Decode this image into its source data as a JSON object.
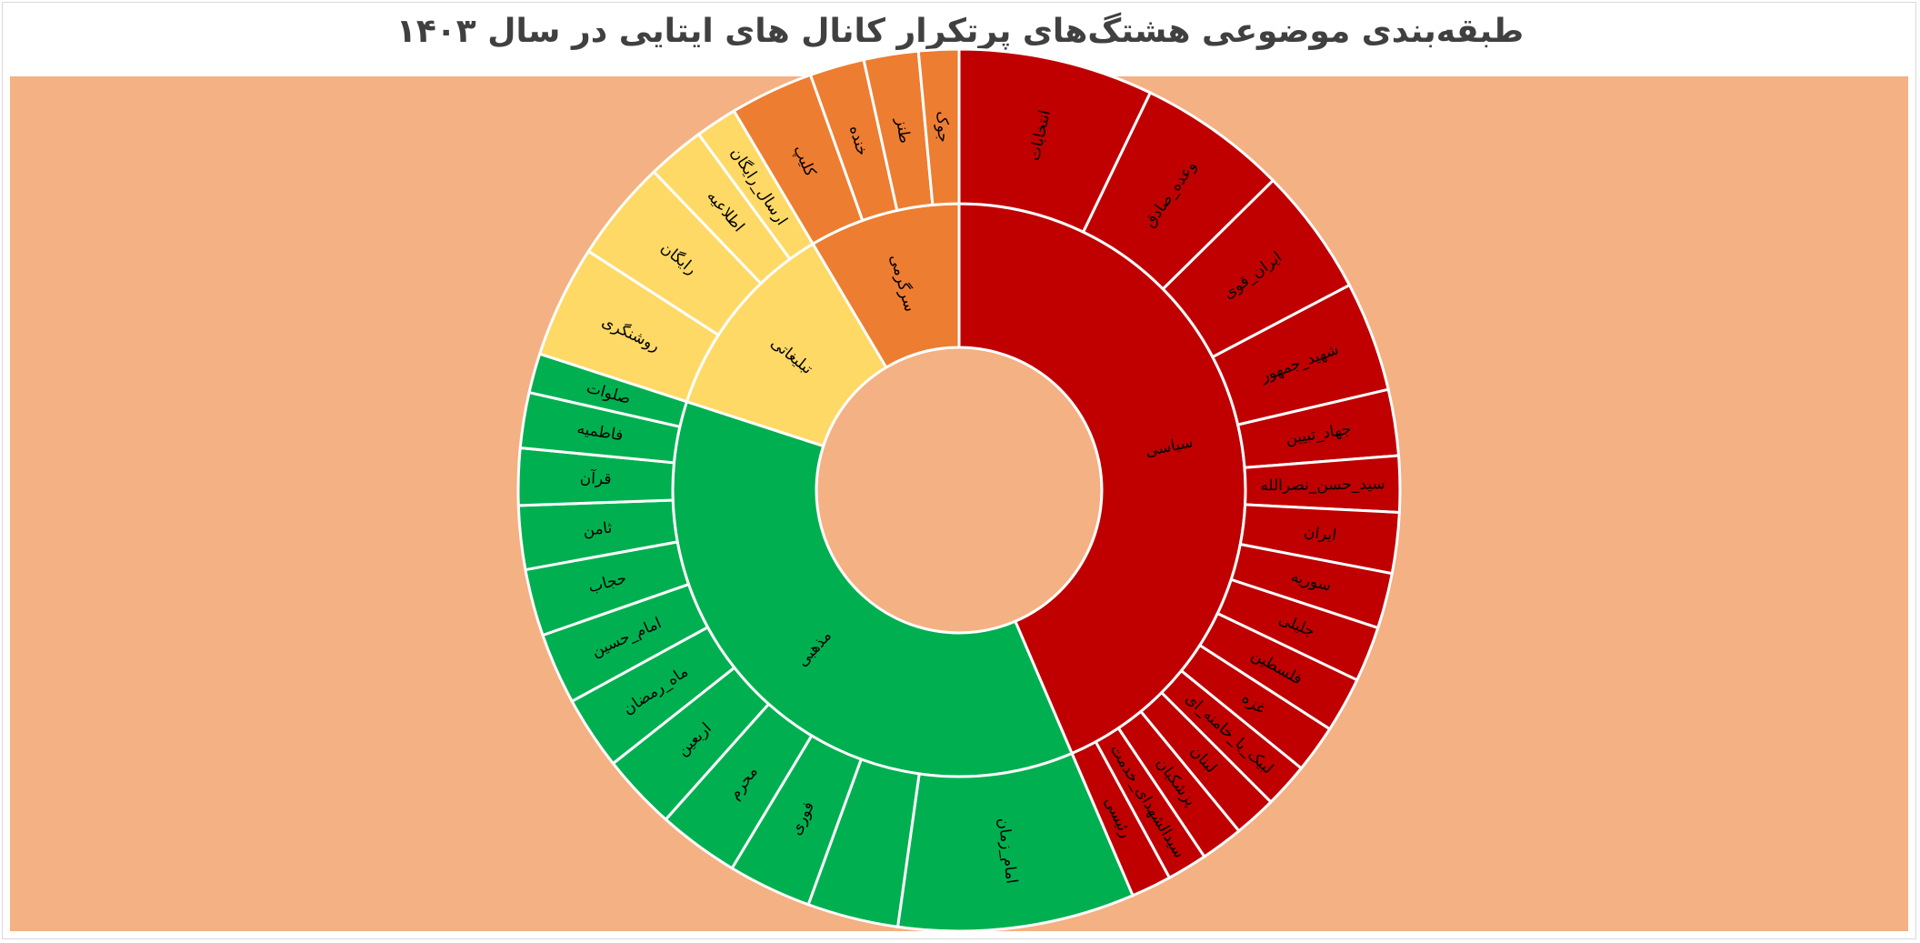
{
  "title": "طبقه‌بندی موضوعی هشتگ‌های پرتکرار کانال های ایتایی در سال ۱۴۰۳",
  "colors": {
    "plot_background": "#f4b183",
    "political": "#c00000",
    "religious": "#00b050",
    "promotional": "#ffd966",
    "entertainment": "#ed7d31",
    "separator": "#ffffff"
  },
  "chart_data": {
    "type": "sunburst",
    "title": "طبقه‌بندی موضوعی هشتگ‌های پرتکرار کانال های ایتایی در سال ۱۴۰۳",
    "center": [
      1055,
      539
    ],
    "radii": {
      "hole": 157,
      "inner": 315,
      "outer": 485
    },
    "units": "degrees clockwise from 12 o'clock (approximate share of total)",
    "categories": [
      {
        "name": "سیاسی",
        "color": "#c00000",
        "start": 0,
        "end": 156.8,
        "children": [
          {
            "name": "انتخابات",
            "start": 0,
            "end": 25.7
          },
          {
            "name": "وعده_صادق",
            "start": 25.7,
            "end": 45.4
          },
          {
            "name": "ایران_قوی",
            "start": 45.4,
            "end": 62.3
          },
          {
            "name": "شهید_جمهور",
            "start": 62.3,
            "end": 76.8
          },
          {
            "name": "جهاد_تبیین",
            "start": 76.8,
            "end": 85.5
          },
          {
            "name": "سید_حسن_نصرالله",
            "start": 85.5,
            "end": 92.9
          },
          {
            "name": "ایران",
            "start": 92.9,
            "end": 100.9
          },
          {
            "name": "سوریه",
            "start": 100.9,
            "end": 108.2
          },
          {
            "name": "جلیلی",
            "start": 108.2,
            "end": 115.5
          },
          {
            "name": "فلسطین",
            "start": 115.5,
            "end": 122.8
          },
          {
            "name": "غزه",
            "start": 122.8,
            "end": 129.1
          },
          {
            "name": "لبیک_یا_خامنه_ای",
            "start": 129.1,
            "end": 135.0
          },
          {
            "name": "لبنان",
            "start": 135.0,
            "end": 140.6
          },
          {
            "name": "پزشکیان",
            "start": 140.6,
            "end": 146.2
          },
          {
            "name": "سیدالشهدای_خدمت",
            "start": 146.2,
            "end": 151.5
          },
          {
            "name": "رئیسی",
            "start": 151.5,
            "end": 156.8
          }
        ]
      },
      {
        "name": "مذهبی",
        "color": "#00b050",
        "start": 156.8,
        "end": 288.0,
        "children": [
          {
            "name": "امام_زمان",
            "start": 156.8,
            "end": 188.0
          },
          {
            "name": "",
            "start": 188.0,
            "end": 200.0
          },
          {
            "name": "فوری",
            "start": 200.0,
            "end": 211.0
          },
          {
            "name": "محرم",
            "start": 211.0,
            "end": 221.7
          },
          {
            "name": "اربعین",
            "start": 221.7,
            "end": 231.7
          },
          {
            "name": "ماه_رمضان",
            "start": 231.7,
            "end": 241.4
          },
          {
            "name": "امام_حسین",
            "start": 241.4,
            "end": 250.8
          },
          {
            "name": "حجاب",
            "start": 250.8,
            "end": 259.6
          },
          {
            "name": "ثامن",
            "start": 259.6,
            "end": 268.0
          },
          {
            "name": "قرآن",
            "start": 268.0,
            "end": 275.5
          },
          {
            "name": "فاطمیه",
            "start": 275.5,
            "end": 282.8
          },
          {
            "name": "صلوات",
            "start": 282.8,
            "end": 288.0
          }
        ]
      },
      {
        "name": "تبلیغاتی",
        "color": "#ffd966",
        "start": 288.0,
        "end": 329.3,
        "children": [
          {
            "name": "روشنگری",
            "start": 288.0,
            "end": 302.8
          },
          {
            "name": "رایگان",
            "start": 302.8,
            "end": 316.2
          },
          {
            "name": "اطلاعیه",
            "start": 316.2,
            "end": 323.8
          },
          {
            "name": "ارسال_رایگان",
            "start": 323.8,
            "end": 329.3
          }
        ]
      },
      {
        "name": "سرگرمی",
        "color": "#ed7d31",
        "start": 329.3,
        "end": 360,
        "children": [
          {
            "name": "کلیپ",
            "start": 329.3,
            "end": 340.3
          },
          {
            "name": "خنده",
            "start": 340.3,
            "end": 347.5
          },
          {
            "name": "طنز",
            "start": 347.5,
            "end": 354.7
          },
          {
            "name": "جوک",
            "start": 354.7,
            "end": 360
          }
        ]
      }
    ],
    "legend": "none",
    "grid": false
  }
}
